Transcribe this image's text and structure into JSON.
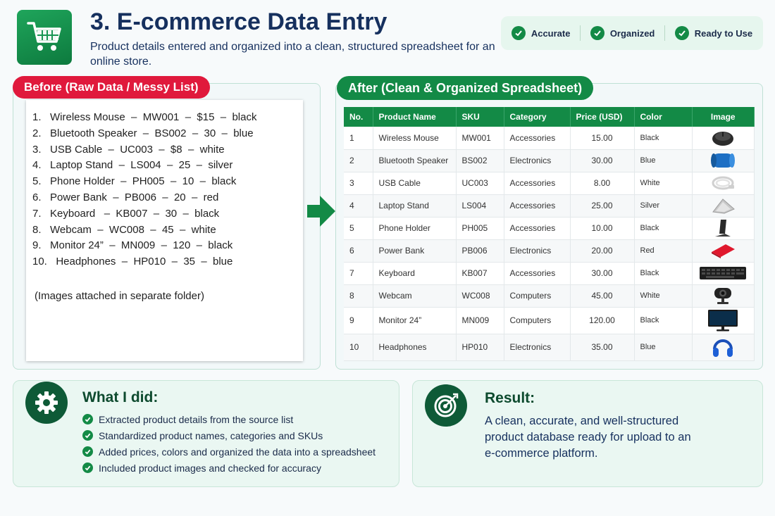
{
  "header": {
    "title": "3. E-commerce Data Entry",
    "subtitle": "Product details entered and organized into a clean, structured spreadsheet for an online store.",
    "logo_icon": "shopping-cart-icon",
    "badges": [
      "Accurate",
      "Organized",
      "Ready to Use"
    ]
  },
  "before": {
    "label": "Before (Raw Data / Messy List)",
    "lines": [
      "1.   Wireless Mouse  –  MW001  –  $15  –  black",
      "2.   Bluetooth Speaker  –  BS002  –  30  –  blue",
      "3.   USB Cable  –  UC003  –  $8  –  white",
      "4.   Laptop Stand  –  LS004  –  25  –  silver",
      "5.   Phone Holder  –  PH005  –  10  –  black",
      "6.   Power Bank  –  PB006  –  20  –  red",
      "7.   Keyboard   –  KB007  –  30  –  black",
      "8.   Webcam  –  WC008  –  45  –  white",
      "9.   Monitor 24”  –  MN009  –  120  –  black",
      "10.   Headphones  –  HP010  –  35  –  blue"
    ],
    "note": "(Images attached in separate folder)"
  },
  "after": {
    "label": "After (Clean & Organized Spreadsheet)",
    "columns": [
      "No.",
      "Product Name",
      "SKU",
      "Category",
      "Price (USD)",
      "Color",
      "Image"
    ],
    "rows": [
      {
        "no": "1",
        "name": "Wireless Mouse",
        "sku": "MW001",
        "category": "Accessories",
        "price": "15.00",
        "color": "Black",
        "image": "mouse-icon"
      },
      {
        "no": "2",
        "name": "Bluetooth Speaker",
        "sku": "BS002",
        "category": "Electronics",
        "price": "30.00",
        "color": "Blue",
        "image": "speaker-icon"
      },
      {
        "no": "3",
        "name": "USB Cable",
        "sku": "UC003",
        "category": "Accessories",
        "price": "8.00",
        "color": "White",
        "image": "usb-cable-icon"
      },
      {
        "no": "4",
        "name": "Laptop Stand",
        "sku": "LS004",
        "category": "Accessories",
        "price": "25.00",
        "color": "Silver",
        "image": "laptop-stand-icon"
      },
      {
        "no": "5",
        "name": "Phone Holder",
        "sku": "PH005",
        "category": "Accessories",
        "price": "10.00",
        "color": "Black",
        "image": "phone-holder-icon"
      },
      {
        "no": "6",
        "name": "Power Bank",
        "sku": "PB006",
        "category": "Electronics",
        "price": "20.00",
        "color": "Red",
        "image": "power-bank-icon"
      },
      {
        "no": "7",
        "name": "Keyboard",
        "sku": "KB007",
        "category": "Accessories",
        "price": "30.00",
        "color": "Black",
        "image": "keyboard-icon"
      },
      {
        "no": "8",
        "name": "Webcam",
        "sku": "WC008",
        "category": "Computers",
        "price": "45.00",
        "color": "White",
        "image": "webcam-icon"
      },
      {
        "no": "9",
        "name": "Monitor 24”",
        "sku": "MN009",
        "category": "Computers",
        "price": "120.00",
        "color": "Black",
        "image": "monitor-icon"
      },
      {
        "no": "10",
        "name": "Headphones",
        "sku": "HP010",
        "category": "Electronics",
        "price": "35.00",
        "color": "Blue",
        "image": "headphones-icon"
      }
    ]
  },
  "what_i_did": {
    "title": "What I did:",
    "icon": "gear-icon",
    "items": [
      "Extracted product details from the source list",
      "Standardized product names, categories and SKUs",
      "Added prices, colors and organized the data into a spreadsheet",
      "Included product images and checked for accuracy"
    ]
  },
  "result": {
    "title": "Result:",
    "icon": "target-icon",
    "text": "A clean, accurate, and well-structured product database ready for upload to an e-commerce platform."
  },
  "colors": {
    "brand_green": "#138a46",
    "before_red": "#e0193c",
    "title_navy": "#16305e"
  }
}
